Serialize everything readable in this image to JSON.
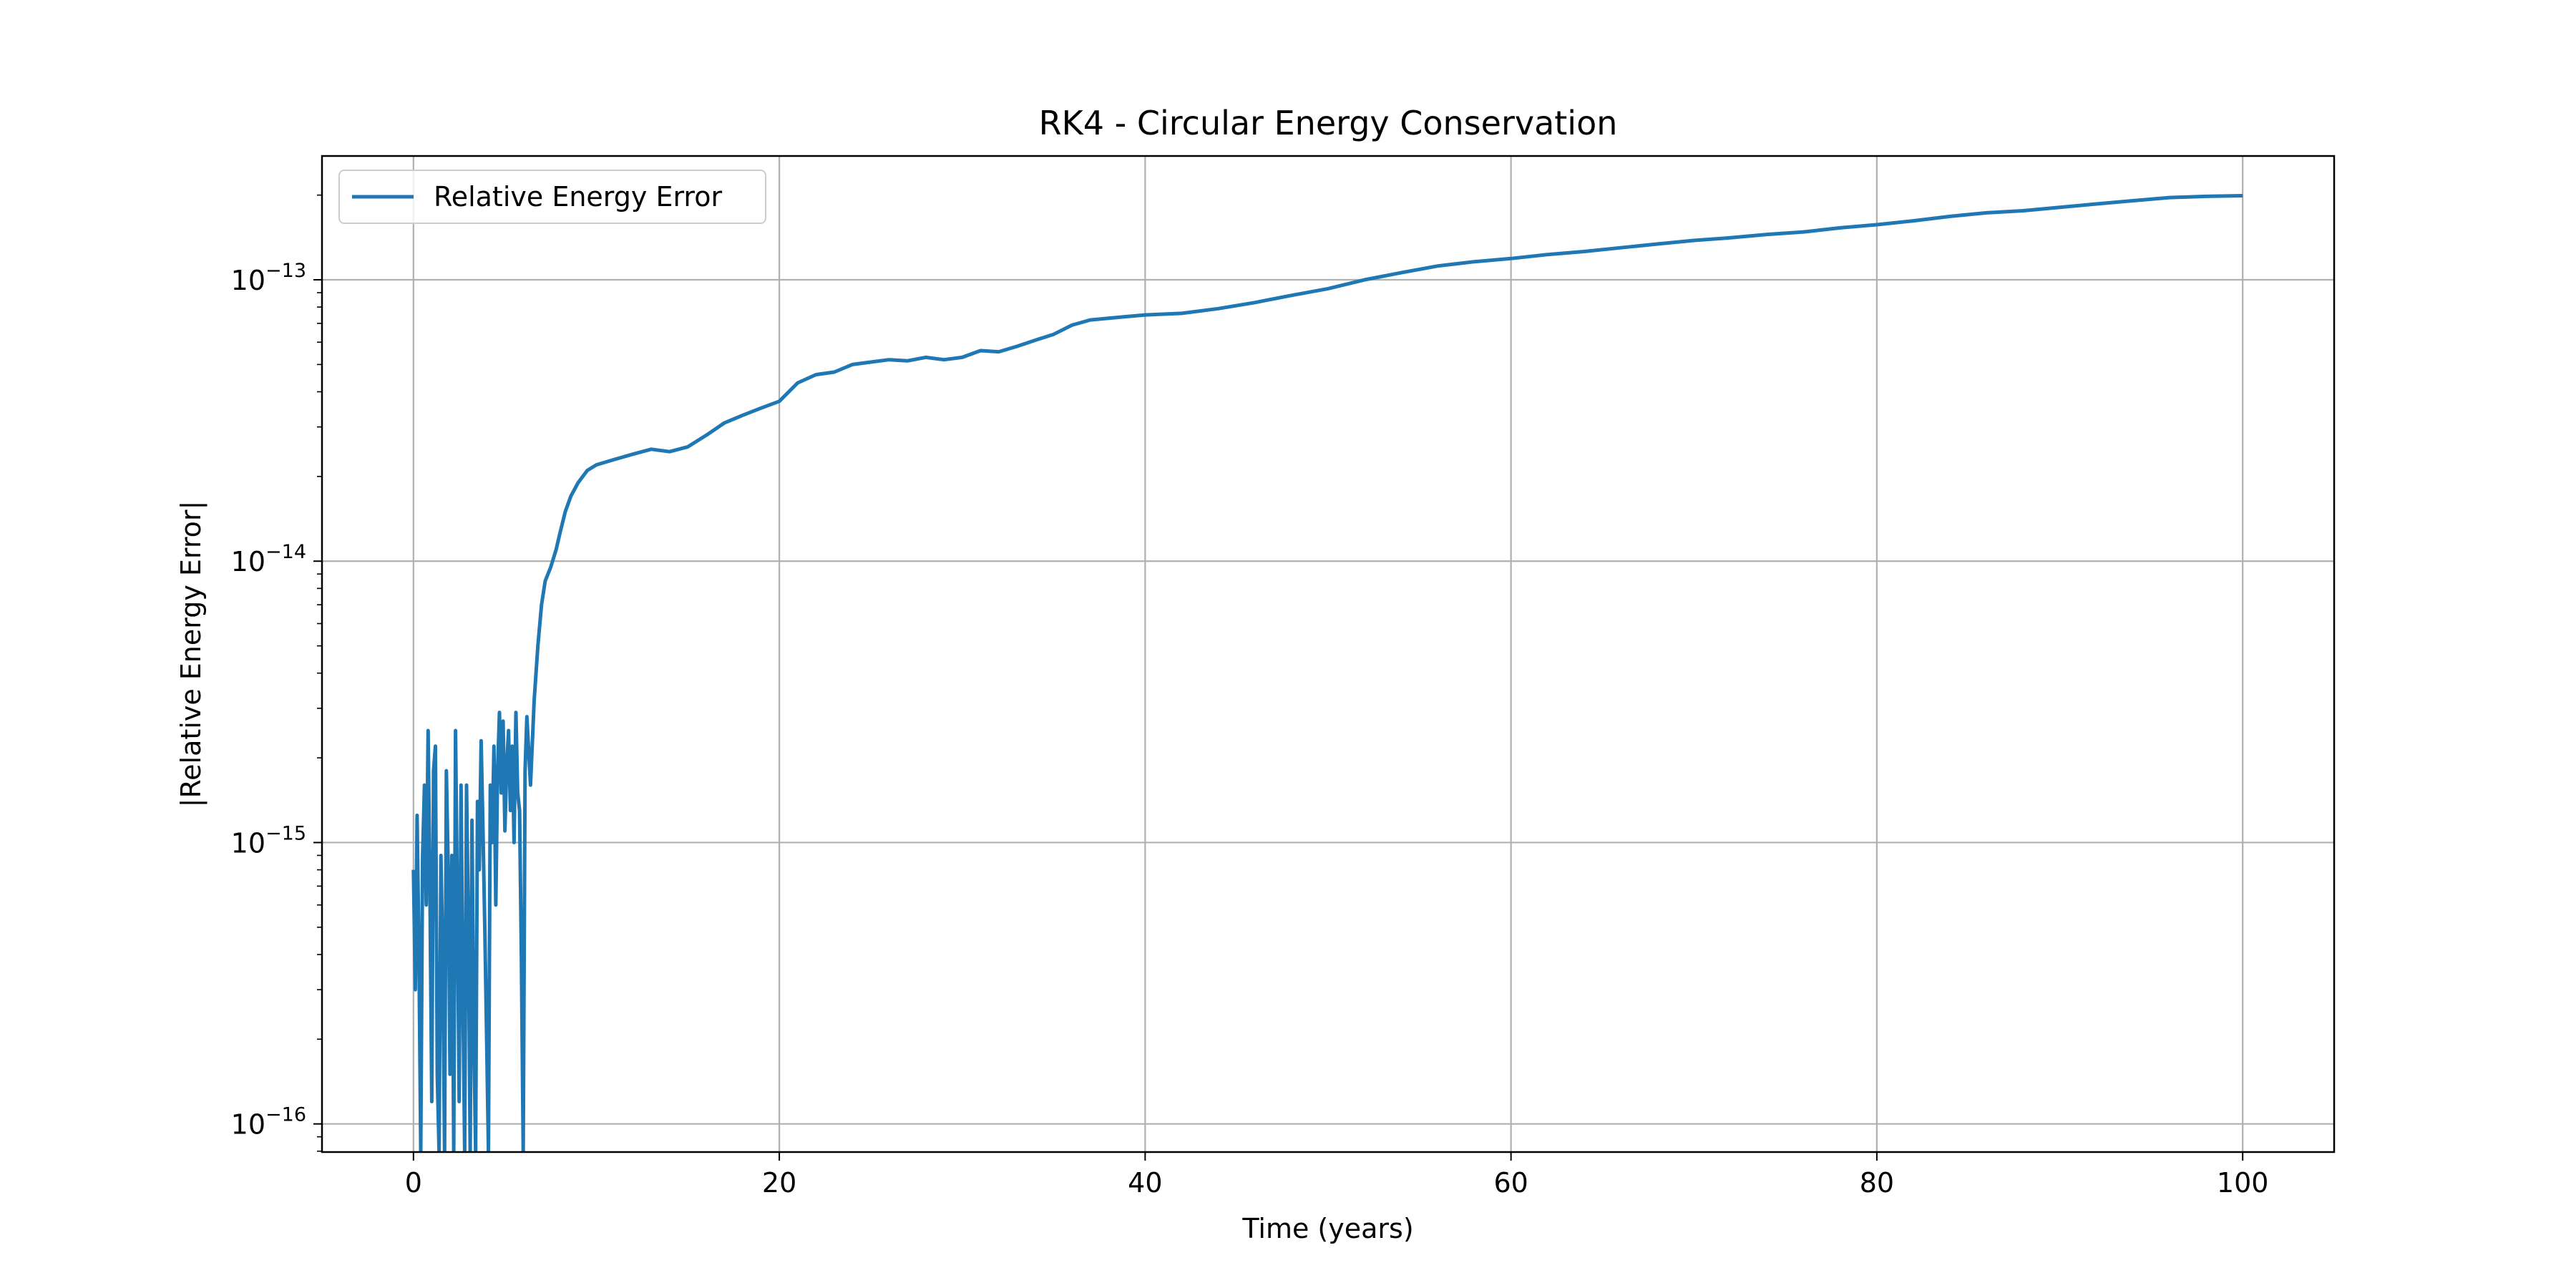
{
  "chart_data": {
    "type": "line",
    "title": "RK4 - Circular Energy Conservation",
    "xlabel": "Time (years)",
    "ylabel": "|Relative Energy Error|",
    "xlim": [
      -5,
      105
    ],
    "ylim_log10": [
      -16.1,
      -12.56
    ],
    "yscale": "log",
    "grid": true,
    "legend_position": "top-left",
    "color": "#1f77b4",
    "x_ticks": [
      0,
      20,
      40,
      60,
      80,
      100
    ],
    "x_tick_labels": [
      "0",
      "20",
      "40",
      "60",
      "80",
      "100"
    ],
    "y_ticks": [
      -16,
      -15,
      -14,
      -13
    ],
    "series": [
      {
        "name": "Relative Energy Error",
        "x": [
          0,
          0.1,
          0.2,
          0.3,
          0.4,
          0.5,
          0.6,
          0.7,
          0.8,
          0.9,
          1.0,
          1.1,
          1.2,
          1.3,
          1.4,
          1.5,
          1.6,
          1.7,
          1.8,
          1.9,
          2.0,
          2.1,
          2.2,
          2.3,
          2.4,
          2.5,
          2.6,
          2.7,
          2.8,
          2.9,
          3.0,
          3.1,
          3.2,
          3.3,
          3.4,
          3.5,
          3.6,
          3.7,
          3.8,
          3.9,
          4.0,
          4.1,
          4.2,
          4.3,
          4.4,
          4.5,
          4.6,
          4.7,
          4.8,
          4.9,
          5.0,
          5.1,
          5.2,
          5.3,
          5.4,
          5.5,
          5.6,
          5.7,
          5.8,
          5.9,
          6.0,
          6.1,
          6.2,
          6.4,
          6.6,
          6.8,
          7.0,
          7.2,
          7.5,
          7.8,
          8.0,
          8.3,
          8.6,
          9.0,
          9.5,
          10,
          11,
          12,
          13,
          14,
          15,
          16,
          17,
          18,
          19,
          20,
          21,
          22,
          23,
          24,
          25,
          26,
          27,
          28,
          29,
          30,
          31,
          32,
          33,
          34,
          35,
          36,
          37,
          38,
          39,
          40,
          42,
          44,
          46,
          48,
          50,
          52,
          54,
          56,
          58,
          60,
          62,
          64,
          66,
          68,
          70,
          72,
          74,
          76,
          78,
          80,
          82,
          84,
          86,
          88,
          90,
          92,
          94,
          96,
          98,
          100
        ],
        "y": [
          8e-16,
          3e-16,
          1.25e-15,
          4e-16,
          8e-17,
          9e-16,
          1.6e-15,
          6e-16,
          2.5e-15,
          7e-16,
          1.2e-16,
          1.8e-15,
          2.2e-15,
          1.5e-16,
          8e-17,
          9e-16,
          4e-16,
          8e-17,
          1.8e-15,
          8e-16,
          1.5e-16,
          9e-16,
          8e-17,
          2.5e-15,
          6e-16,
          1.2e-16,
          1.6e-15,
          3e-16,
          8e-17,
          1.6e-15,
          5e-16,
          8e-17,
          1.2e-15,
          2e-16,
          8e-17,
          1.4e-15,
          8e-16,
          2.3e-15,
          1.1e-15,
          5e-16,
          2e-16,
          8e-17,
          1.6e-15,
          1e-15,
          2.2e-15,
          6e-16,
          1.8e-15,
          2.9e-15,
          1.5e-15,
          2.7e-15,
          1.1e-15,
          1.9e-15,
          2.5e-15,
          1.3e-15,
          2.2e-15,
          1e-15,
          2.9e-15,
          1.5e-15,
          1.3e-15,
          4e-16,
          8e-17,
          1.8e-15,
          2.8e-15,
          1.6e-15,
          3.2e-15,
          5e-15,
          7e-15,
          8.5e-15,
          9.5e-15,
          1.1e-14,
          1.25e-14,
          1.5e-14,
          1.7e-14,
          1.9e-14,
          2.1e-14,
          2.2e-14,
          2.3e-14,
          2.4e-14,
          2.5e-14,
          2.45e-14,
          2.55e-14,
          2.8e-14,
          3.1e-14,
          3.3e-14,
          3.5e-14,
          3.7e-14,
          4.3e-14,
          4.6e-14,
          4.7e-14,
          5e-14,
          5.1e-14,
          5.2e-14,
          5.15e-14,
          5.3e-14,
          5.2e-14,
          5.3e-14,
          5.6e-14,
          5.55e-14,
          5.8e-14,
          6.1e-14,
          6.4e-14,
          6.9e-14,
          7.2e-14,
          7.3e-14,
          7.4e-14,
          7.5e-14,
          7.6e-14,
          7.9e-14,
          8.3e-14,
          8.8e-14,
          9.3e-14,
          1e-13,
          1.06e-13,
          1.12e-13,
          1.16e-13,
          1.19e-13,
          1.23e-13,
          1.26e-13,
          1.3e-13,
          1.34e-13,
          1.38e-13,
          1.41e-13,
          1.45e-13,
          1.48e-13,
          1.53e-13,
          1.57e-13,
          1.62e-13,
          1.68e-13,
          1.73e-13,
          1.76e-13,
          1.81e-13,
          1.86e-13,
          1.91e-13,
          1.96e-13,
          1.98e-13,
          1.99e-13
        ]
      }
    ]
  }
}
